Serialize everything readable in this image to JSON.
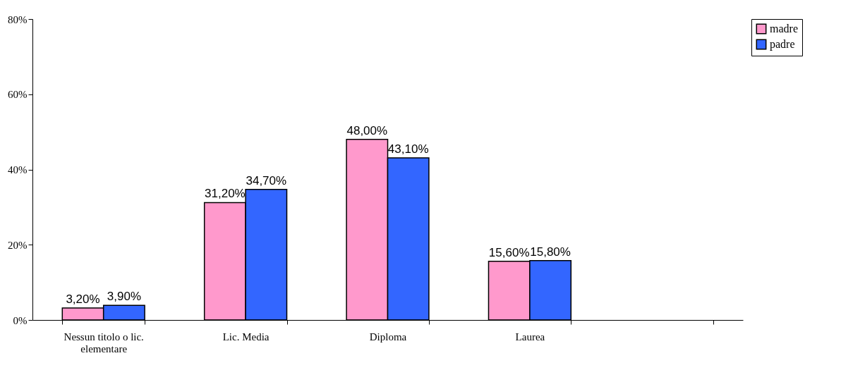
{
  "chart_data": {
    "type": "bar",
    "categories": [
      "Nessun titolo o lic. elementare",
      "Lic. Media",
      "Diploma",
      "Laurea",
      null
    ],
    "series": [
      {
        "name": "madre",
        "color": "#ff99cc",
        "values": [
          3.2,
          31.2,
          48.0,
          15.6,
          null
        ],
        "value_labels": [
          "3,20%",
          "31,20%",
          "48,00%",
          "15,60%",
          null
        ]
      },
      {
        "name": "padre",
        "color": "#3366ff",
        "values": [
          3.9,
          34.7,
          43.1,
          15.8,
          null
        ],
        "value_labels": [
          "3,90%",
          "34,70%",
          "43,10%",
          "15,80%",
          null
        ]
      }
    ],
    "ylim": [
      0,
      80
    ],
    "yticks": [
      {
        "value": 0,
        "label": "0%"
      },
      {
        "value": 20,
        "label": "20%"
      },
      {
        "value": 40,
        "label": "40%"
      },
      {
        "value": 60,
        "label": "60%"
      },
      {
        "value": 80,
        "label": "80%"
      }
    ],
    "grid": false,
    "legend": "right"
  }
}
